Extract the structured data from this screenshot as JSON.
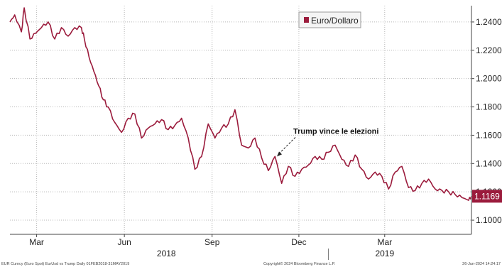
{
  "chart_data": {
    "type": "line",
    "title": "",
    "xlabel": "",
    "ylabel": "",
    "legend": {
      "placement": "top-center",
      "entries": [
        "Euro/Dollaro"
      ]
    },
    "colors": {
      "series": "#9b1b3c",
      "grid": "#b8b8b8",
      "axis": "#444444"
    },
    "grid": true,
    "ylim": [
      1.09,
      1.2515
    ],
    "y_ticks": [
      "1.1000",
      "1.1200",
      "1.1400",
      "1.1600",
      "1.1800",
      "1.2000",
      "1.2200",
      "1.2400"
    ],
    "y_tick_values": [
      1.1,
      1.12,
      1.14,
      1.16,
      1.18,
      1.2,
      1.22,
      1.24
    ],
    "xlim": [
      "2018-02-01",
      "2019-05-31"
    ],
    "x_ticks": [
      {
        "label": "Mar",
        "date": "2018-03-01"
      },
      {
        "label": "Jun",
        "date": "2018-06-01"
      },
      {
        "label": "Sep",
        "date": "2018-09-01"
      },
      {
        "label": "Dec",
        "date": "2018-12-01"
      },
      {
        "label": "Mar",
        "date": "2019-03-01"
      }
    ],
    "year_labels": [
      {
        "label": "2018",
        "date": "2018-07-15"
      },
      {
        "label": "2019",
        "date": "2019-03-01"
      }
    ],
    "last_price": {
      "label": "1.1169",
      "value": 1.1169
    },
    "annotations": [
      {
        "text": "Trump vince le elezioni",
        "target_date": "2018-11-08",
        "target_value": 1.145
      }
    ],
    "series": [
      {
        "name": "Euro/Dollaro",
        "x": [
          "2018-02-01",
          "2018-02-06",
          "2018-02-13",
          "2018-02-16",
          "2018-02-22",
          "2018-02-28",
          "2018-03-06",
          "2018-03-13",
          "2018-03-20",
          "2018-03-27",
          "2018-04-03",
          "2018-04-10",
          "2018-04-17",
          "2018-04-20",
          "2018-04-25",
          "2018-04-30",
          "2018-05-05",
          "2018-05-10",
          "2018-05-15",
          "2018-05-22",
          "2018-05-29",
          "2018-06-05",
          "2018-06-12",
          "2018-06-19",
          "2018-06-26",
          "2018-07-03",
          "2018-07-10",
          "2018-07-17",
          "2018-07-24",
          "2018-07-31",
          "2018-08-07",
          "2018-08-14",
          "2018-08-21",
          "2018-08-28",
          "2018-09-04",
          "2018-09-11",
          "2018-09-18",
          "2018-09-25",
          "2018-10-02",
          "2018-10-09",
          "2018-10-16",
          "2018-10-23",
          "2018-10-30",
          "2018-11-06",
          "2018-11-13",
          "2018-11-20",
          "2018-11-27",
          "2018-12-04",
          "2018-12-11",
          "2018-12-18",
          "2018-12-25",
          "2019-01-01",
          "2019-01-08",
          "2019-01-15",
          "2019-01-22",
          "2019-01-29",
          "2019-02-05",
          "2019-02-12",
          "2019-02-19",
          "2019-02-26",
          "2019-03-05",
          "2019-03-12",
          "2019-03-19",
          "2019-03-26",
          "2019-04-02",
          "2019-04-09",
          "2019-04-16",
          "2019-04-23",
          "2019-04-30",
          "2019-05-07",
          "2019-05-14",
          "2019-05-21",
          "2019-05-28",
          "2019-05-31"
        ],
        "values": [
          1.24,
          1.245,
          1.233,
          1.25,
          1.228,
          1.232,
          1.236,
          1.24,
          1.228,
          1.236,
          1.23,
          1.236,
          1.236,
          1.228,
          1.215,
          1.205,
          1.195,
          1.185,
          1.18,
          1.169,
          1.162,
          1.172,
          1.175,
          1.158,
          1.165,
          1.168,
          1.171,
          1.164,
          1.167,
          1.172,
          1.158,
          1.136,
          1.145,
          1.168,
          1.158,
          1.165,
          1.168,
          1.178,
          1.153,
          1.151,
          1.158,
          1.144,
          1.135,
          1.145,
          1.126,
          1.138,
          1.131,
          1.136,
          1.139,
          1.145,
          1.143,
          1.148,
          1.153,
          1.143,
          1.138,
          1.146,
          1.136,
          1.129,
          1.134,
          1.131,
          1.122,
          1.134,
          1.138,
          1.123,
          1.121,
          1.126,
          1.129,
          1.122,
          1.121,
          1.12,
          1.118,
          1.116,
          1.114,
          1.117
        ]
      }
    ]
  },
  "footer": {
    "left": "EUR Curncy (Euro Spot) EurUsd vs Trump  Daily 01FEB2018-31MAY2019",
    "center": "Copyright© 2024 Bloomberg Finance L.P.",
    "right": "26-Jun-2024 14:24:17"
  }
}
